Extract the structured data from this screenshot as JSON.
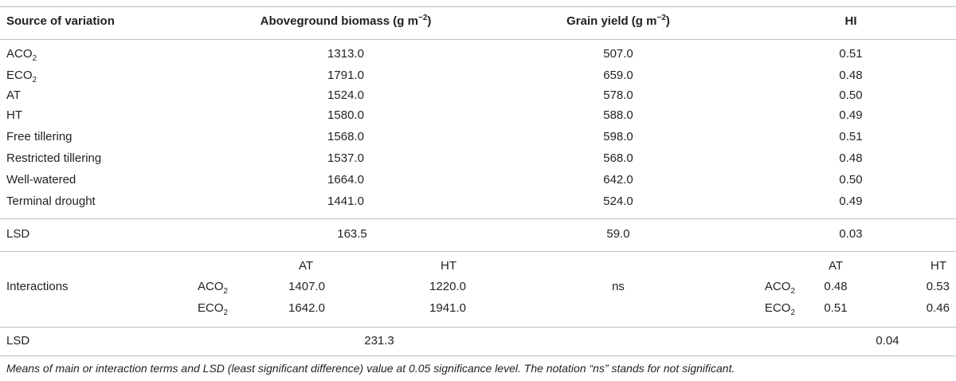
{
  "header": {
    "col1": "Source of variation",
    "biomass": "Aboveground biomass (g m",
    "biomass_exp": "−2",
    "biomass_close": ")",
    "grain": "Grain yield (g m",
    "grain_exp": "−2",
    "grain_close": ")",
    "hi": "HI"
  },
  "rows": [
    {
      "base": "ACO",
      "sub": "2",
      "biomass": "1313.0",
      "grain": "507.0",
      "hi": "0.51"
    },
    {
      "base": "ECO",
      "sub": "2",
      "biomass": "1791.0",
      "grain": "659.0",
      "hi": "0.48"
    },
    {
      "base": "AT",
      "sub": "",
      "biomass": "1524.0",
      "grain": "578.0",
      "hi": "0.50"
    },
    {
      "base": "HT",
      "sub": "",
      "biomass": "1580.0",
      "grain": "588.0",
      "hi": "0.49"
    },
    {
      "base": "Free tillering",
      "sub": "",
      "biomass": "1568.0",
      "grain": "598.0",
      "hi": "0.51"
    },
    {
      "base": "Restricted tillering",
      "sub": "",
      "biomass": "1537.0",
      "grain": "568.0",
      "hi": "0.48"
    },
    {
      "base": "Well-watered",
      "sub": "",
      "biomass": "1664.0",
      "grain": "642.0",
      "hi": "0.50"
    },
    {
      "base": "Terminal drought",
      "sub": "",
      "biomass": "1441.0",
      "grain": "524.0",
      "hi": "0.49"
    }
  ],
  "lsd1": {
    "label": "LSD",
    "biomass": "163.5",
    "grain": "59.0",
    "hi": "0.03"
  },
  "interactions": {
    "label": "Interactions",
    "col_at": "AT",
    "col_ht": "HT",
    "row1": {
      "base": "ACO",
      "sub": "2",
      "biomass_at": "1407.0",
      "biomass_ht": "1220.0",
      "hi_at": "0.48",
      "hi_ht": "0.53"
    },
    "row2": {
      "base": "ECO",
      "sub": "2",
      "biomass_at": "1642.0",
      "biomass_ht": "1941.0",
      "hi_at": "0.51",
      "hi_ht": "0.46"
    },
    "grain": "ns"
  },
  "lsd2": {
    "label": "LSD",
    "biomass": "231.3",
    "hi": "0.04"
  },
  "footnote": "Means of main or interaction terms and LSD (least significant difference) value at 0.05 significance level. The notation “ns” stands for not significant."
}
